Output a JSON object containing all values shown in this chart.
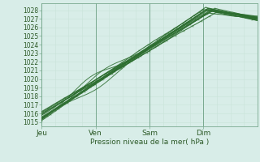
{
  "title": "",
  "xlabel": "Pression niveau de la mer( hPa )",
  "bg_color": "#d8ede8",
  "grid_color_minor": "#c8e4d8",
  "grid_color_major": "#a8c8b8",
  "line_color": "#2d6e30",
  "xlim": [
    0,
    96
  ],
  "ylim": [
    1014.5,
    1028.8
  ],
  "yticks": [
    1015,
    1016,
    1017,
    1018,
    1019,
    1020,
    1021,
    1022,
    1023,
    1024,
    1025,
    1026,
    1027,
    1028
  ],
  "xtick_labels": [
    "Jeu",
    "Ven",
    "Sam",
    "Dim"
  ],
  "xtick_positions": [
    0,
    24,
    48,
    72
  ],
  "day_lines": [
    0,
    24,
    48,
    72
  ]
}
